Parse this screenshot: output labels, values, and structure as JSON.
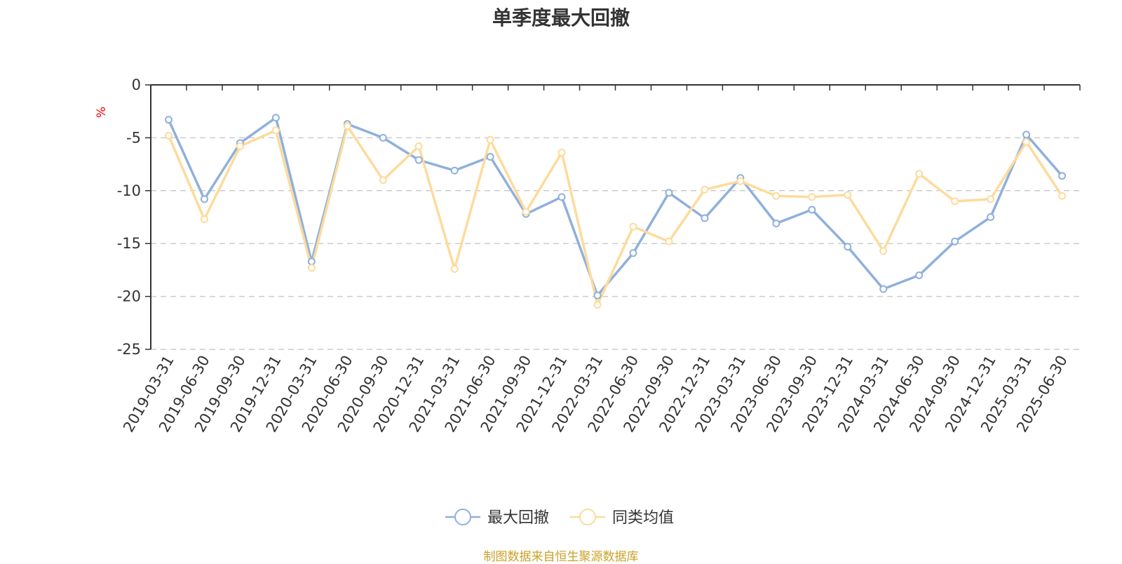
{
  "chart_data": {
    "type": "line",
    "title": "单季度最大回撤",
    "ylabel": "%",
    "ylim": [
      -25,
      0
    ],
    "yticks": [
      0,
      -5,
      -10,
      -15,
      -20,
      -25
    ],
    "grid": true,
    "legend_position": "bottom-center",
    "categories": [
      "2019-03-31",
      "2019-06-30",
      "2019-09-30",
      "2019-12-31",
      "2020-03-31",
      "2020-06-30",
      "2020-09-30",
      "2020-12-31",
      "2021-03-31",
      "2021-06-30",
      "2021-09-30",
      "2021-12-31",
      "2022-03-31",
      "2022-06-30",
      "2022-09-30",
      "2022-12-31",
      "2023-03-31",
      "2023-06-30",
      "2023-09-30",
      "2023-12-31",
      "2024-03-31",
      "2024-06-30",
      "2024-09-30",
      "2024-12-31",
      "2025-03-31",
      "2025-06-30"
    ],
    "series": [
      {
        "name": "最大回撤",
        "color": "#8fb0dc",
        "values": [
          -3.3,
          -10.8,
          -5.5,
          -3.1,
          -16.7,
          -3.7,
          -5.0,
          -7.1,
          -8.1,
          -6.8,
          -12.2,
          -10.6,
          -19.9,
          -15.9,
          -10.2,
          -12.6,
          -8.8,
          -13.1,
          -11.8,
          -15.3,
          -19.3,
          -18.0,
          -14.8,
          -12.5,
          -4.7,
          -8.6
        ]
      },
      {
        "name": "同类均值",
        "color": "#fddb9c",
        "values": [
          -4.8,
          -12.7,
          -5.8,
          -4.3,
          -17.3,
          -3.9,
          -9.0,
          -5.8,
          -17.4,
          -5.2,
          -12.0,
          -6.4,
          -20.8,
          -13.4,
          -14.8,
          -9.9,
          -9.1,
          -10.5,
          -10.6,
          -10.4,
          -15.7,
          -8.4,
          -11.0,
          -10.8,
          -5.4,
          -10.5
        ]
      }
    ]
  },
  "footer": {
    "source": "制图数据来自恒生聚源数据库"
  }
}
